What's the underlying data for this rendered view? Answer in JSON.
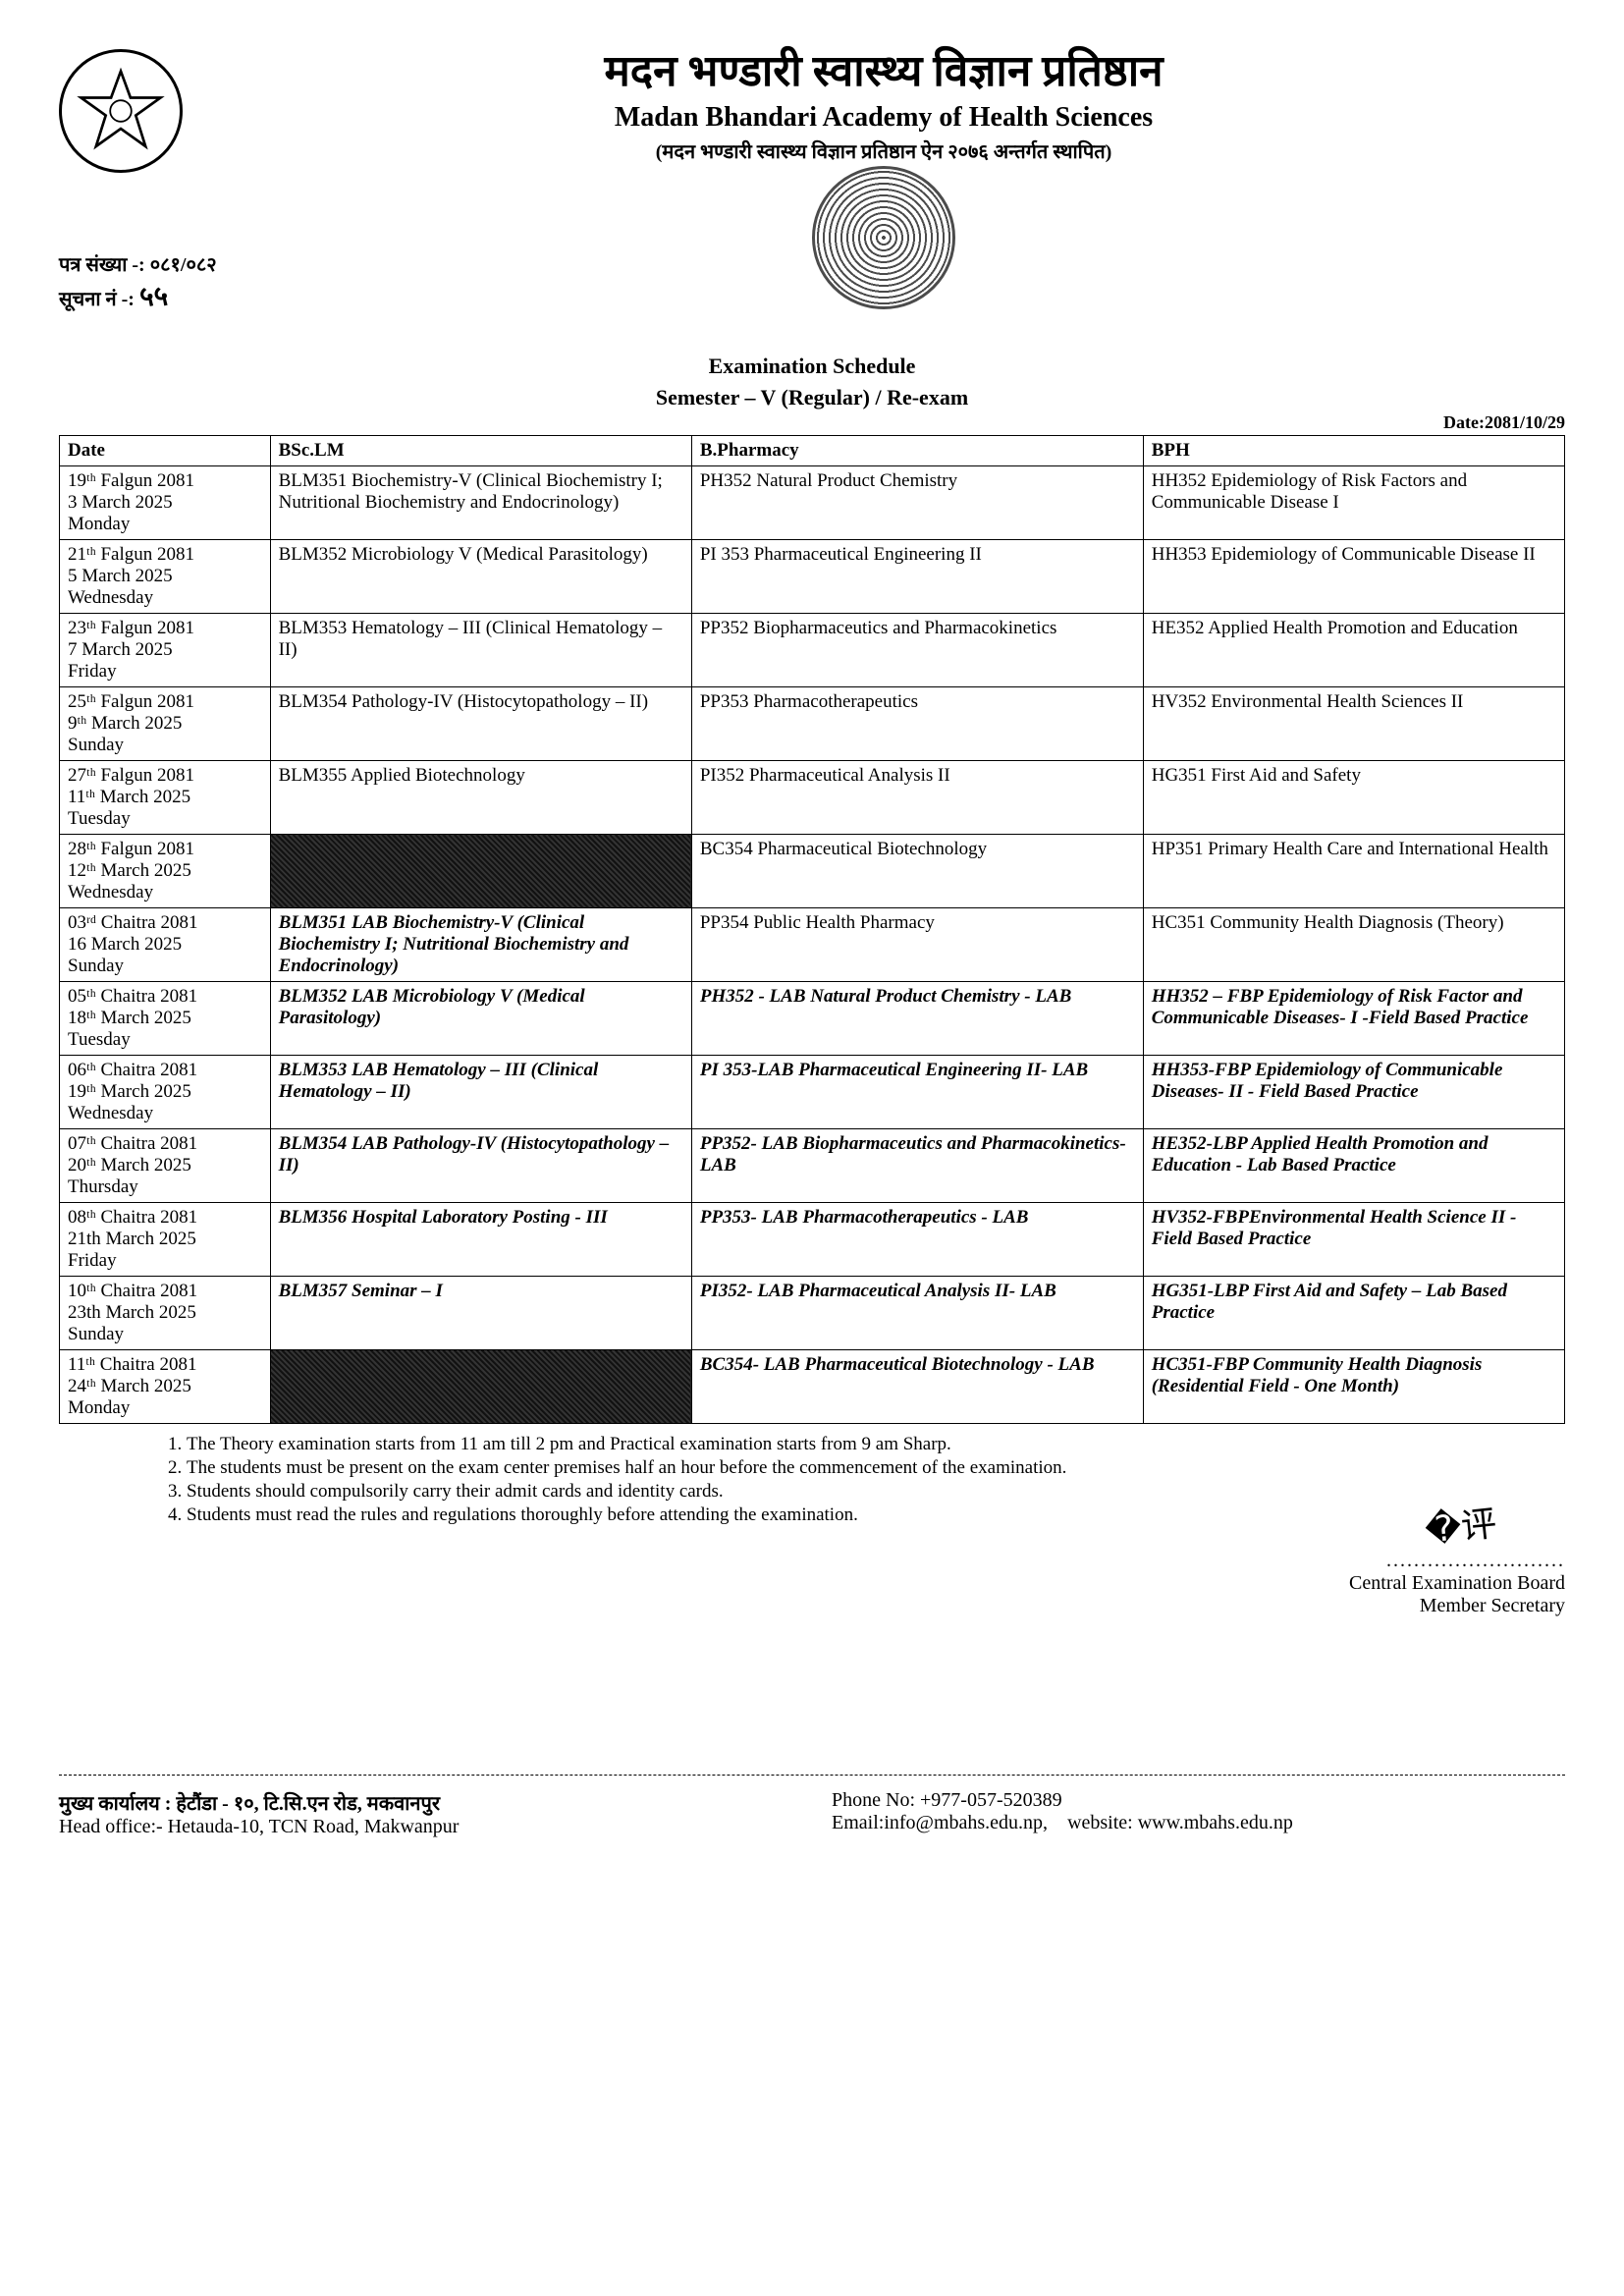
{
  "header": {
    "title_devanagari": "मदन भण्डारी स्वास्थ्य विज्ञान प्रतिष्ठान",
    "title_english": "Madan Bhandari Academy of Health Sciences",
    "subtitle_devanagari": "(मदन भण्डारी स्वास्थ्य विज्ञान प्रतिष्ठान ऐन २०७६ अन्तर्गत स्थापित)",
    "ref_label": "पत्र संख्या -: ०८१/०८२",
    "notice_label": "सूचना नं -:",
    "notice_no": "५५",
    "schedule_title": "Examination Schedule",
    "schedule_sub": "Semester – V (Regular) / Re-exam",
    "doc_date": "Date:2081/10/29"
  },
  "table": {
    "headers": [
      "Date",
      "BSc.LM",
      "B.Pharmacy",
      "BPH"
    ],
    "rows": [
      {
        "date": "19ᵗʰ Falgun 2081\n3 March 2025\nMonday",
        "a": "BLM351 Biochemistry-V (Clinical Biochemistry I; Nutritional Biochemistry and Endocrinology)",
        "b": "PH352 Natural Product Chemistry",
        "c": "HH352 Epidemiology of Risk Factors and Communicable Disease I",
        "style": ""
      },
      {
        "date": "21ᵗʰ Falgun 2081\n5 March 2025\nWednesday",
        "a": "BLM352 Microbiology V (Medical Parasitology)",
        "b": "PI 353 Pharmaceutical Engineering II",
        "c": "HH353 Epidemiology of Communicable Disease II",
        "style": ""
      },
      {
        "date": "23ᵗʰ Falgun 2081\n7 March 2025\nFriday",
        "a": "BLM353 Hematology – III (Clinical Hematology – II)",
        "b": "PP352 Biopharmaceutics and Pharmacokinetics",
        "c": "HE352 Applied Health Promotion and Education",
        "style": ""
      },
      {
        "date": "25ᵗʰ Falgun 2081\n9ᵗʰ March 2025\nSunday",
        "a": "BLM354 Pathology-IV (Histocytopathology – II)",
        "b": "PP353 Pharmacotherapeutics",
        "c": "HV352 Environmental Health Sciences II",
        "style": ""
      },
      {
        "date": "27ᵗʰ Falgun 2081\n11ᵗʰ March 2025\nTuesday",
        "a": "BLM355 Applied Biotechnology",
        "b": "PI352 Pharmaceutical Analysis II",
        "c": "HG351 First Aid and Safety",
        "style": ""
      },
      {
        "date": "28ᵗʰ Falgun 2081\n12ᵗʰ March 2025\nWednesday",
        "a": "",
        "a_blackout": true,
        "b": "BC354 Pharmaceutical Biotechnology",
        "c": "HP351 Primary Health Care and International Health",
        "style": ""
      },
      {
        "date": "03ʳᵈ Chaitra 2081\n16 March 2025\nSunday",
        "a": "BLM351 LAB Biochemistry-V (Clinical Biochemistry I; Nutritional Biochemistry and Endocrinology)",
        "b": "PP354 Public Health Pharmacy",
        "c": "HC351 Community Health Diagnosis (Theory)",
        "style": "italic-bold-a"
      },
      {
        "date": "05ᵗʰ Chaitra 2081\n18ᵗʰ March 2025\nTuesday",
        "a": "BLM352 LAB Microbiology V (Medical Parasitology)",
        "b": "PH352 - LAB Natural Product Chemistry - LAB",
        "c": "HH352 – FBP Epidemiology of Risk Factor and Communicable Diseases- I -Field Based Practice",
        "style": "italic-bold"
      },
      {
        "date": "06ᵗʰ Chaitra 2081\n19ᵗʰ March 2025\nWednesday",
        "a": "BLM353 LAB Hematology – III (Clinical Hematology – II)",
        "b": "PI 353-LAB Pharmaceutical Engineering II- LAB",
        "c": "HH353-FBP Epidemiology of Communicable Diseases- II - Field Based Practice",
        "style": "italic-bold"
      },
      {
        "date": "07ᵗʰ Chaitra 2081\n20ᵗʰ March 2025\nThursday",
        "a": "BLM354 LAB Pathology-IV (Histocytopathology – II)",
        "b": "PP352- LAB Biopharmaceutics and Pharmacokinetics- LAB",
        "c": "HE352-LBP Applied Health Promotion and Education - Lab Based Practice",
        "style": "italic-bold"
      },
      {
        "date": "08ᵗʰ Chaitra 2081\n21th March 2025\nFriday",
        "a": "BLM356 Hospital Laboratory Posting - III",
        "b": "PP353- LAB Pharmacotherapeutics - LAB",
        "c": "HV352-FBPEnvironmental Health Science II -Field Based Practice",
        "style": "italic-bold"
      },
      {
        "date": "10ᵗʰ Chaitra 2081\n23th March 2025\nSunday",
        "a": "BLM357 Seminar – I",
        "b": "PI352- LAB Pharmaceutical Analysis II- LAB",
        "c": "HG351-LBP First Aid and Safety – Lab Based Practice",
        "style": "italic-bold"
      },
      {
        "date": "11ᵗʰ Chaitra 2081\n24ᵗʰ March 2025\nMonday",
        "a": "",
        "a_blackout": true,
        "b": "BC354- LAB Pharmaceutical Biotechnology - LAB",
        "c": "HC351-FBP Community Health Diagnosis (Residential Field - One Month)",
        "style": "italic-bold"
      }
    ]
  },
  "notes": [
    "The Theory examination starts from 11 am till 2 pm and Practical examination starts from 9 am Sharp.",
    "The students must be present on the exam center premises half an hour before the commencement of the examination.",
    "Students should compulsorily carry their admit cards and identity cards.",
    "Students must read the rules and regulations thoroughly before attending the examination."
  ],
  "signature": {
    "line1": "Central Examination Board",
    "line2": "Member Secretary"
  },
  "footer": {
    "office_dev": "मुख्य कार्यालय : हेटौंडा - १०, टि.सि.एन रोड, मकवानपुर",
    "office_en": "Head office:- Hetauda-10, TCN Road, Makwanpur",
    "phone": "Phone No: +977-057-520389",
    "email": "Email:info@mbahs.edu.np,",
    "website": "website: www.mbahs.edu.np"
  }
}
